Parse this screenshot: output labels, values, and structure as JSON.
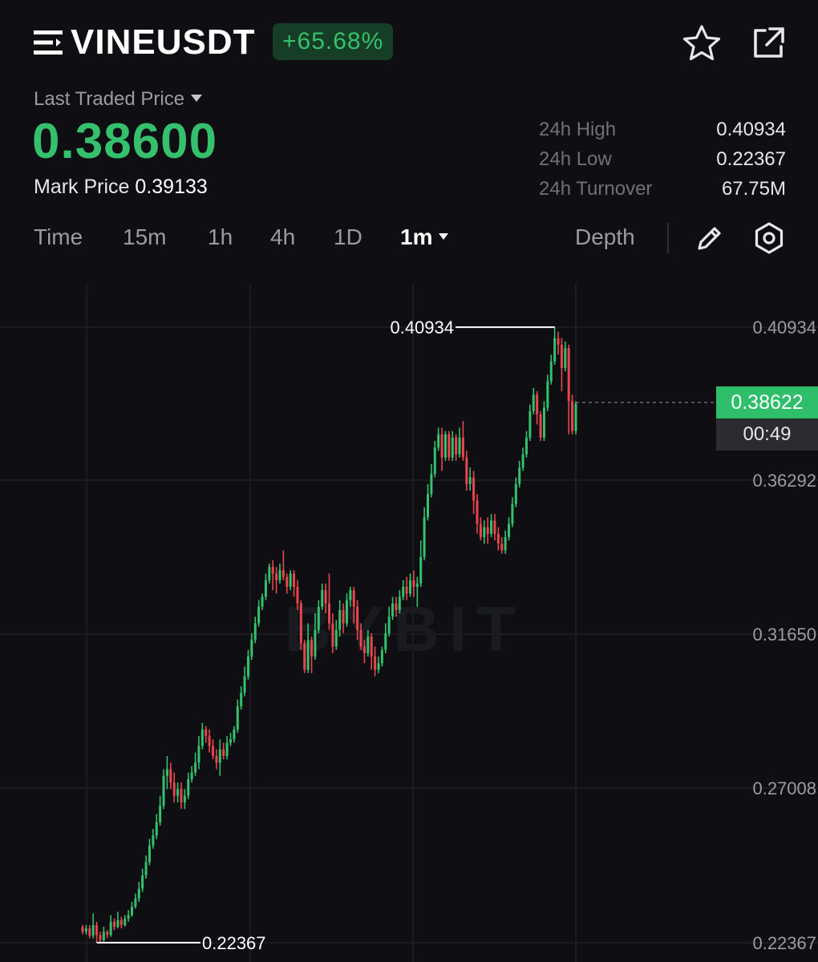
{
  "header": {
    "symbol": "VINEUSDT",
    "change": "+65.68%",
    "menu_icon": "menu-icon",
    "favorite_icon": "star-icon",
    "share_icon": "share-icon"
  },
  "price": {
    "last_label": "Last Traded Price",
    "last_value": "0.38600",
    "mark_label": "Mark Price",
    "mark_value": "0.39133"
  },
  "stats": [
    {
      "label": "24h High",
      "value": "0.40934"
    },
    {
      "label": "24h Low",
      "value": "0.22367"
    },
    {
      "label": "24h Turnover",
      "value": "67.75M"
    }
  ],
  "tabs": {
    "time": "Time",
    "m15": "15m",
    "h1": "1h",
    "h4": "4h",
    "d1": "1D",
    "m1": "1m",
    "depth": "Depth",
    "active": "1m"
  },
  "colors": {
    "up": "#34c06c",
    "down": "#e8464f",
    "background": "#0f0f13"
  },
  "chart_data": {
    "type": "candlestick",
    "interval": "1m",
    "y_axis_labels": [
      "0.40934",
      "0.36292",
      "0.31650",
      "0.27008",
      "0.22367"
    ],
    "ylim": [
      0.22367,
      0.40934
    ],
    "high_marker": "0.40934",
    "low_marker": "0.22367",
    "current_price": "0.38622",
    "countdown": "00:49",
    "watermark": "BYBIT",
    "grid": true,
    "candles": [
      [
        0.2284,
        0.227,
        0.229,
        0.2262
      ],
      [
        0.227,
        0.228,
        0.229,
        0.2262
      ],
      [
        0.228,
        0.2258,
        0.229,
        0.225
      ],
      [
        0.2258,
        0.229,
        0.2325,
        0.225
      ],
      [
        0.229,
        0.226,
        0.23,
        0.2237
      ],
      [
        0.226,
        0.2245,
        0.227,
        0.2237
      ],
      [
        0.2245,
        0.227,
        0.2285,
        0.224
      ],
      [
        0.227,
        0.226,
        0.2275,
        0.225
      ],
      [
        0.226,
        0.23,
        0.232,
        0.2255
      ],
      [
        0.23,
        0.2285,
        0.231,
        0.2275
      ],
      [
        0.2285,
        0.2305,
        0.233,
        0.228
      ],
      [
        0.2305,
        0.229,
        0.2315,
        0.228
      ],
      [
        0.229,
        0.231,
        0.232,
        0.2285
      ],
      [
        0.231,
        0.232,
        0.2335,
        0.23
      ],
      [
        0.232,
        0.2345,
        0.236,
        0.2315
      ],
      [
        0.2345,
        0.237,
        0.2385,
        0.234
      ],
      [
        0.237,
        0.24,
        0.242,
        0.236
      ],
      [
        0.24,
        0.244,
        0.246,
        0.239
      ],
      [
        0.244,
        0.248,
        0.25,
        0.243
      ],
      [
        0.248,
        0.253,
        0.255,
        0.247
      ],
      [
        0.253,
        0.256,
        0.258,
        0.252
      ],
      [
        0.256,
        0.26,
        0.2625,
        0.255
      ],
      [
        0.26,
        0.265,
        0.268,
        0.259
      ],
      [
        0.265,
        0.274,
        0.276,
        0.264
      ],
      [
        0.274,
        0.276,
        0.28,
        0.27
      ],
      [
        0.276,
        0.272,
        0.278,
        0.27
      ],
      [
        0.272,
        0.268,
        0.275,
        0.266
      ],
      [
        0.268,
        0.27,
        0.272,
        0.266
      ],
      [
        0.27,
        0.266,
        0.272,
        0.264
      ],
      [
        0.266,
        0.268,
        0.27,
        0.264
      ],
      [
        0.268,
        0.273,
        0.275,
        0.267
      ],
      [
        0.273,
        0.275,
        0.277,
        0.272
      ],
      [
        0.275,
        0.278,
        0.281,
        0.274
      ],
      [
        0.278,
        0.283,
        0.286,
        0.276
      ],
      [
        0.283,
        0.288,
        0.29,
        0.282
      ],
      [
        0.288,
        0.286,
        0.289,
        0.284
      ],
      [
        0.286,
        0.283,
        0.288,
        0.281
      ],
      [
        0.283,
        0.28,
        0.285,
        0.279
      ],
      [
        0.28,
        0.278,
        0.282,
        0.276
      ],
      [
        0.278,
        0.282,
        0.285,
        0.274
      ],
      [
        0.282,
        0.28,
        0.284,
        0.279
      ],
      [
        0.28,
        0.284,
        0.286,
        0.279
      ],
      [
        0.284,
        0.285,
        0.287,
        0.283
      ],
      [
        0.285,
        0.288,
        0.289,
        0.284
      ],
      [
        0.288,
        0.295,
        0.297,
        0.287
      ],
      [
        0.295,
        0.299,
        0.301,
        0.294
      ],
      [
        0.299,
        0.304,
        0.307,
        0.298
      ],
      [
        0.304,
        0.31,
        0.312,
        0.303
      ],
      [
        0.31,
        0.315,
        0.317,
        0.309
      ],
      [
        0.315,
        0.32,
        0.322,
        0.314
      ],
      [
        0.32,
        0.325,
        0.327,
        0.319
      ],
      [
        0.325,
        0.328,
        0.329,
        0.324
      ],
      [
        0.328,
        0.333,
        0.335,
        0.327
      ],
      [
        0.333,
        0.337,
        0.338,
        0.332
      ],
      [
        0.337,
        0.335,
        0.339,
        0.33
      ],
      [
        0.335,
        0.333,
        0.337,
        0.329
      ],
      [
        0.333,
        0.336,
        0.338,
        0.332
      ],
      [
        0.336,
        0.334,
        0.342,
        0.333
      ],
      [
        0.334,
        0.331,
        0.335,
        0.329
      ],
      [
        0.331,
        0.335,
        0.336,
        0.33
      ],
      [
        0.335,
        0.331,
        0.336,
        0.328
      ],
      [
        0.331,
        0.326,
        0.333,
        0.324
      ],
      [
        0.326,
        0.314,
        0.327,
        0.312
      ],
      [
        0.314,
        0.306,
        0.315,
        0.305
      ],
      [
        0.306,
        0.315,
        0.32,
        0.305
      ],
      [
        0.315,
        0.31,
        0.316,
        0.305
      ],
      [
        0.31,
        0.318,
        0.323,
        0.309
      ],
      [
        0.318,
        0.325,
        0.327,
        0.317
      ],
      [
        0.325,
        0.33,
        0.332,
        0.324
      ],
      [
        0.33,
        0.326,
        0.332,
        0.323
      ],
      [
        0.326,
        0.32,
        0.335,
        0.318
      ],
      [
        0.32,
        0.313,
        0.323,
        0.311
      ],
      [
        0.313,
        0.318,
        0.321,
        0.312
      ],
      [
        0.318,
        0.324,
        0.327,
        0.316
      ],
      [
        0.324,
        0.32,
        0.326,
        0.317
      ],
      [
        0.32,
        0.327,
        0.329,
        0.319
      ],
      [
        0.327,
        0.33,
        0.331,
        0.325
      ],
      [
        0.33,
        0.325,
        0.331,
        0.32
      ],
      [
        0.325,
        0.318,
        0.327,
        0.315
      ],
      [
        0.318,
        0.313,
        0.32,
        0.312
      ],
      [
        0.313,
        0.311,
        0.315,
        0.308
      ],
      [
        0.311,
        0.316,
        0.318,
        0.31
      ],
      [
        0.316,
        0.31,
        0.317,
        0.306
      ],
      [
        0.31,
        0.306,
        0.313,
        0.304
      ],
      [
        0.306,
        0.308,
        0.31,
        0.305
      ],
      [
        0.308,
        0.312,
        0.313,
        0.307
      ],
      [
        0.312,
        0.317,
        0.32,
        0.311
      ],
      [
        0.317,
        0.322,
        0.325,
        0.316
      ],
      [
        0.322,
        0.326,
        0.328,
        0.321
      ],
      [
        0.326,
        0.324,
        0.328,
        0.322
      ],
      [
        0.324,
        0.328,
        0.33,
        0.323
      ],
      [
        0.328,
        0.331,
        0.333,
        0.327
      ],
      [
        0.331,
        0.329,
        0.334,
        0.327
      ],
      [
        0.329,
        0.333,
        0.335,
        0.328
      ],
      [
        0.333,
        0.331,
        0.336,
        0.328
      ],
      [
        0.331,
        0.332,
        0.334,
        0.325
      ],
      [
        0.332,
        0.34,
        0.345,
        0.331
      ],
      [
        0.34,
        0.352,
        0.355,
        0.339
      ],
      [
        0.352,
        0.359,
        0.362,
        0.351
      ],
      [
        0.359,
        0.365,
        0.368,
        0.358
      ],
      [
        0.365,
        0.373,
        0.375,
        0.364
      ],
      [
        0.373,
        0.377,
        0.379,
        0.372
      ],
      [
        0.377,
        0.37,
        0.379,
        0.366
      ],
      [
        0.37,
        0.377,
        0.378,
        0.369
      ],
      [
        0.377,
        0.37,
        0.378,
        0.369
      ],
      [
        0.37,
        0.376,
        0.378,
        0.369
      ],
      [
        0.376,
        0.371,
        0.377,
        0.369
      ],
      [
        0.371,
        0.376,
        0.379,
        0.37
      ],
      [
        0.376,
        0.37,
        0.381,
        0.369
      ],
      [
        0.37,
        0.362,
        0.372,
        0.36
      ],
      [
        0.362,
        0.364,
        0.367,
        0.36
      ],
      [
        0.364,
        0.357,
        0.366,
        0.353
      ],
      [
        0.357,
        0.35,
        0.359,
        0.347
      ],
      [
        0.35,
        0.346,
        0.352,
        0.345
      ],
      [
        0.346,
        0.349,
        0.351,
        0.344
      ],
      [
        0.349,
        0.347,
        0.352,
        0.344
      ],
      [
        0.347,
        0.351,
        0.353,
        0.346
      ],
      [
        0.351,
        0.347,
        0.353,
        0.345
      ],
      [
        0.347,
        0.344,
        0.349,
        0.342
      ],
      [
        0.344,
        0.342,
        0.346,
        0.341
      ],
      [
        0.342,
        0.346,
        0.348,
        0.341
      ],
      [
        0.346,
        0.35,
        0.352,
        0.345
      ],
      [
        0.35,
        0.356,
        0.358,
        0.349
      ],
      [
        0.356,
        0.362,
        0.364,
        0.355
      ],
      [
        0.362,
        0.367,
        0.369,
        0.361
      ],
      [
        0.367,
        0.371,
        0.373,
        0.366
      ],
      [
        0.371,
        0.376,
        0.378,
        0.37
      ],
      [
        0.376,
        0.384,
        0.386,
        0.375
      ],
      [
        0.384,
        0.389,
        0.391,
        0.383
      ],
      [
        0.389,
        0.383,
        0.39,
        0.38
      ],
      [
        0.383,
        0.376,
        0.384,
        0.375
      ],
      [
        0.376,
        0.385,
        0.387,
        0.375
      ],
      [
        0.385,
        0.393,
        0.395,
        0.384
      ],
      [
        0.393,
        0.399,
        0.401,
        0.392
      ],
      [
        0.399,
        0.406,
        0.4093,
        0.398
      ],
      [
        0.406,
        0.404,
        0.408,
        0.401
      ],
      [
        0.404,
        0.397,
        0.406,
        0.39
      ],
      [
        0.397,
        0.403,
        0.405,
        0.396
      ],
      [
        0.403,
        0.387,
        0.404,
        0.377
      ],
      [
        0.387,
        0.378,
        0.389,
        0.377
      ],
      [
        0.378,
        0.3862,
        0.387,
        0.377
      ]
    ]
  }
}
